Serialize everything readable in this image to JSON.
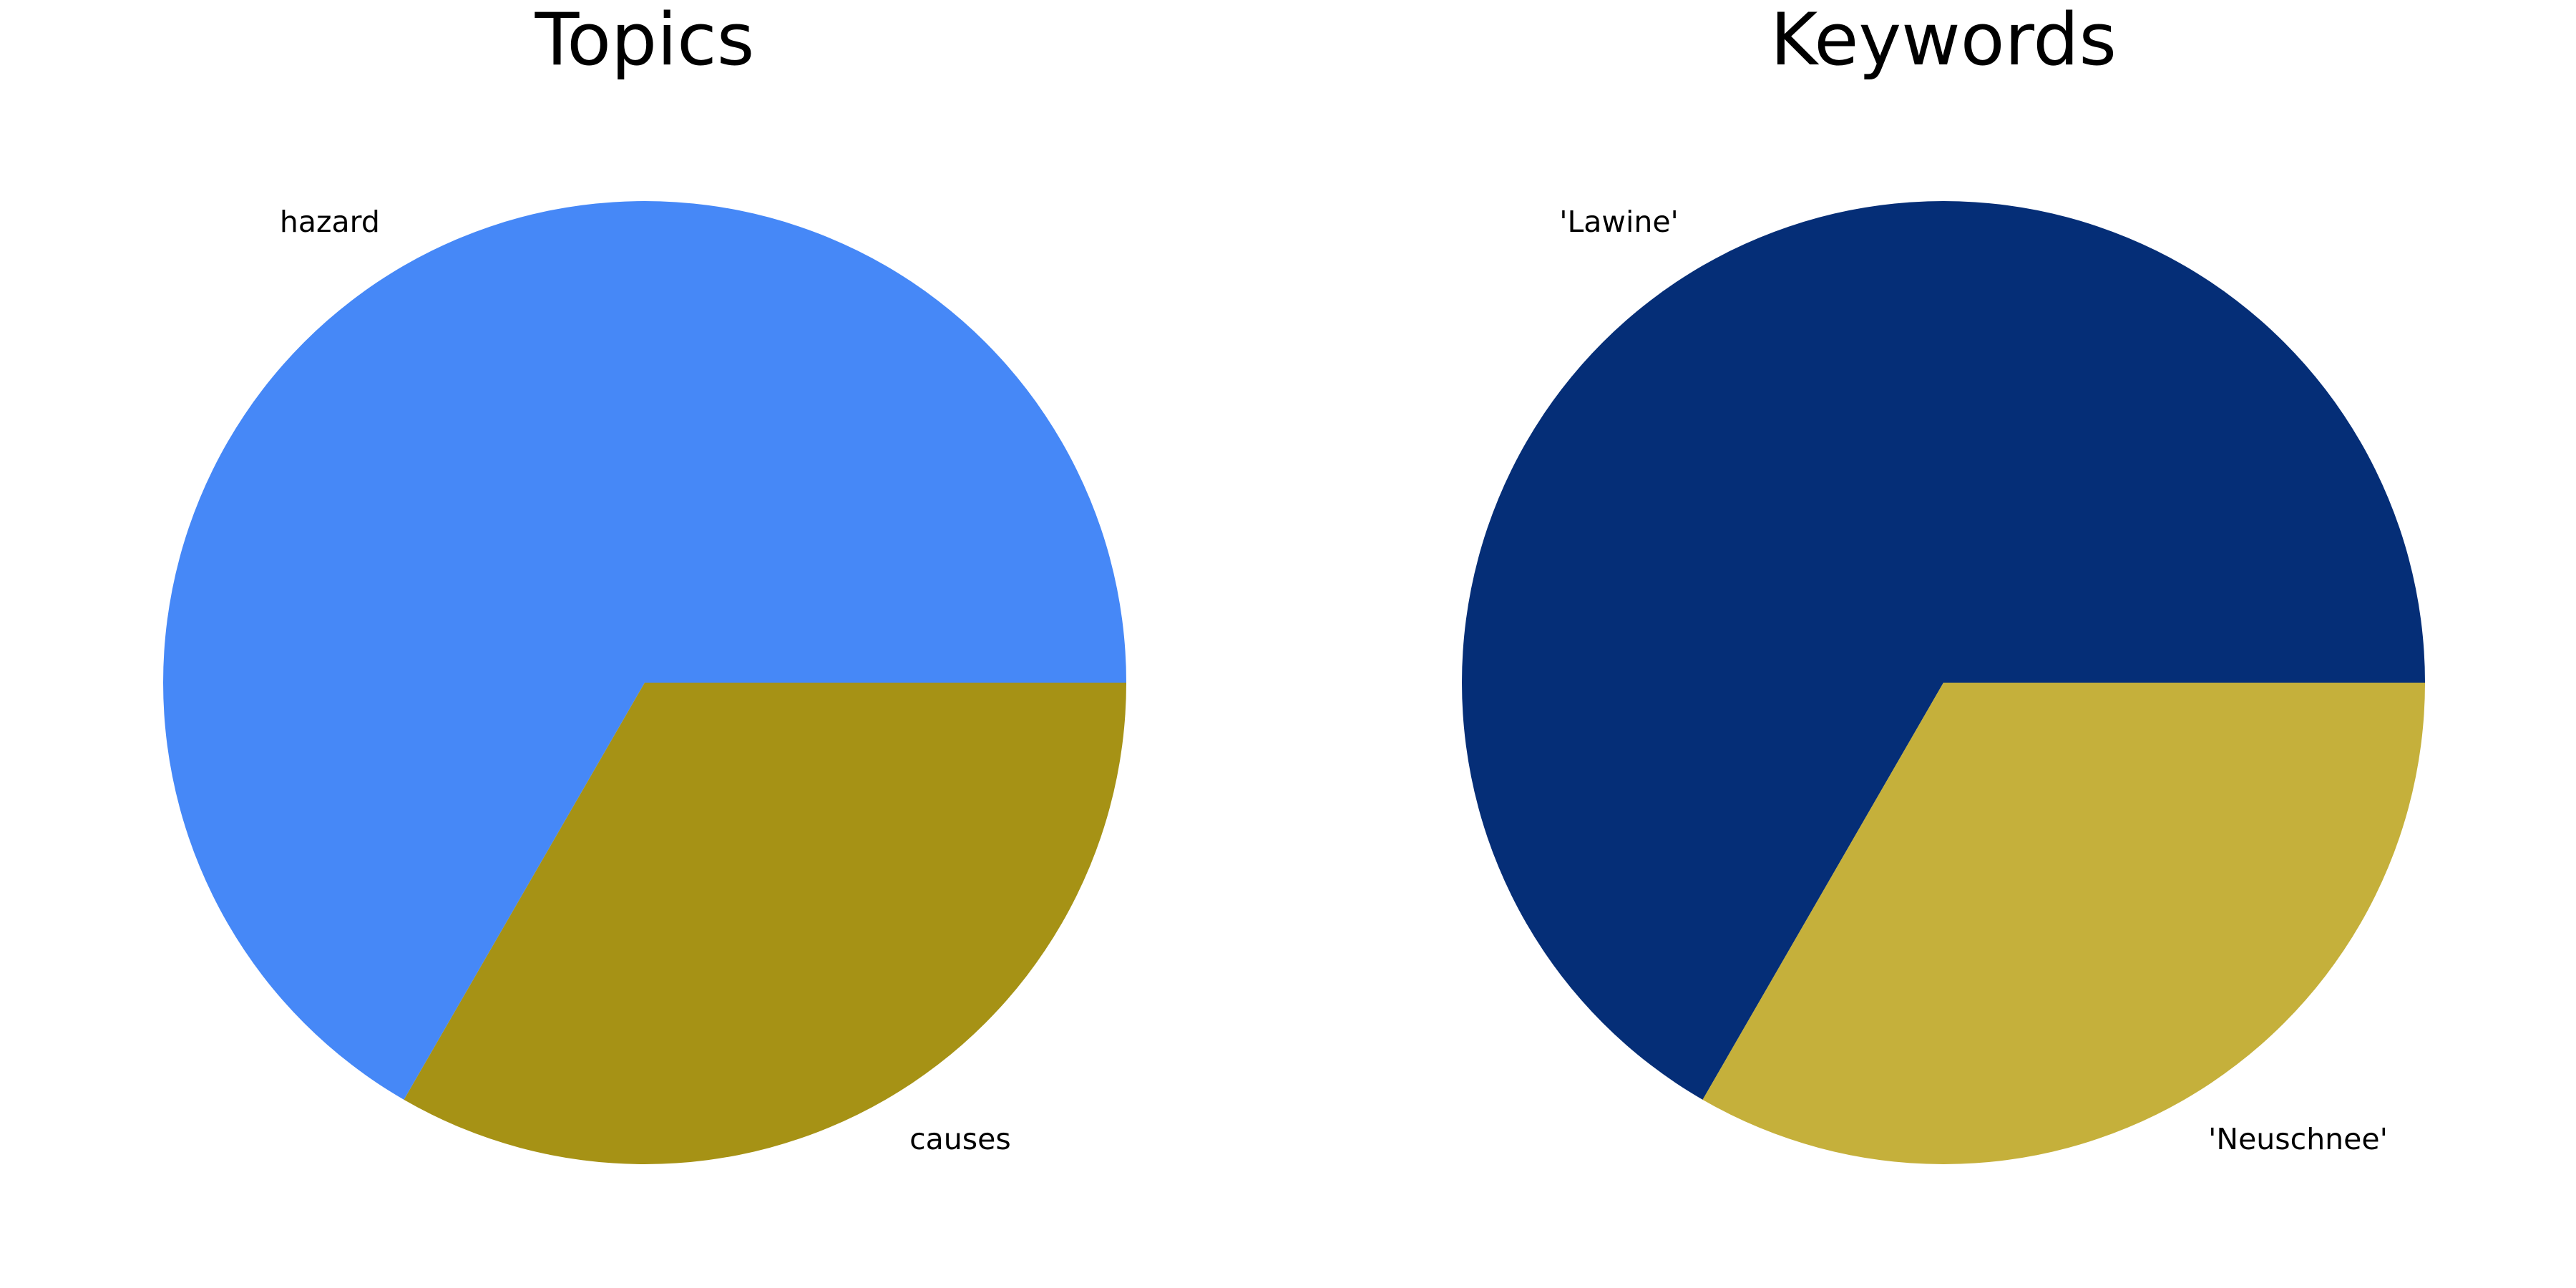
{
  "chart_data": [
    {
      "type": "pie",
      "title": "Topics",
      "start_angle": 0,
      "direction": "counterclockwise",
      "slices": [
        {
          "label": "hazard",
          "value": 2,
          "color": "#4688F7"
        },
        {
          "label": "causes",
          "value": 1,
          "color": "#A69215"
        }
      ]
    },
    {
      "type": "pie",
      "title": "Keywords",
      "start_angle": 0,
      "direction": "counterclockwise",
      "slices": [
        {
          "label": "'Lawine'",
          "value": 2,
          "color": "#052E77"
        },
        {
          "label": "'Neuschnee'",
          "value": 1,
          "color": "#C5B03B"
        }
      ]
    }
  ]
}
